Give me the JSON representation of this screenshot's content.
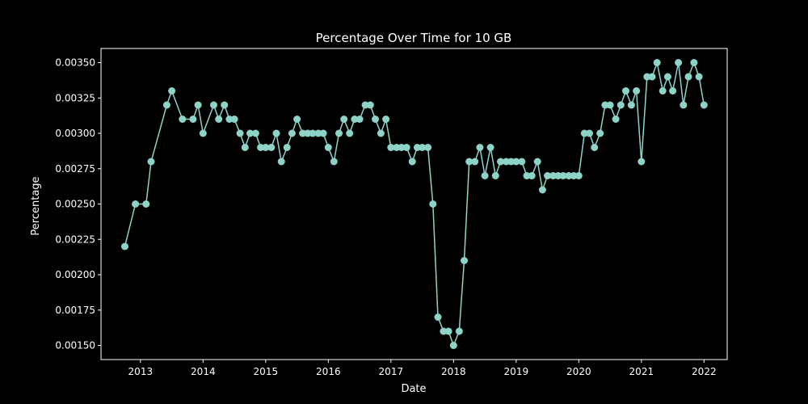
{
  "chart_data": {
    "type": "line",
    "title": "Percentage Over Time for 10 GB",
    "xlabel": "Date",
    "ylabel": "Percentage",
    "xlim": [
      2012.37,
      2022.37
    ],
    "ylim": [
      0.0014,
      0.0036
    ],
    "x_ticks": [
      2013,
      2014,
      2015,
      2016,
      2017,
      2018,
      2019,
      2020,
      2021,
      2022
    ],
    "x_tick_labels": [
      "2013",
      "2014",
      "2015",
      "2016",
      "2017",
      "2018",
      "2019",
      "2020",
      "2021",
      "2022"
    ],
    "y_ticks": [
      0.0015,
      0.00175,
      0.002,
      0.00225,
      0.0025,
      0.00275,
      0.003,
      0.00325,
      0.0035
    ],
    "y_tick_labels": [
      "0.00150",
      "0.00175",
      "0.00200",
      "0.00225",
      "0.00250",
      "0.00275",
      "0.00300",
      "0.00325",
      "0.00350"
    ],
    "grid": false,
    "colors": {
      "line": "#8dd3c7",
      "background": "#000000",
      "axes": "#ffffff"
    },
    "series": [
      {
        "name": "10 GB",
        "points": [
          [
            2012.75,
            0.0022
          ],
          [
            2012.92,
            0.0025
          ],
          [
            2013.09,
            0.0025
          ],
          [
            2013.17,
            0.0028
          ],
          [
            2013.42,
            0.0032
          ],
          [
            2013.5,
            0.0033
          ],
          [
            2013.67,
            0.0031
          ],
          [
            2013.84,
            0.0031
          ],
          [
            2013.92,
            0.0032
          ],
          [
            2014.0,
            0.003
          ],
          [
            2014.17,
            0.0032
          ],
          [
            2014.25,
            0.0031
          ],
          [
            2014.34,
            0.0032
          ],
          [
            2014.42,
            0.0031
          ],
          [
            2014.5,
            0.0031
          ],
          [
            2014.59,
            0.003
          ],
          [
            2014.67,
            0.0029
          ],
          [
            2014.75,
            0.003
          ],
          [
            2014.84,
            0.003
          ],
          [
            2014.92,
            0.0029
          ],
          [
            2015.0,
            0.0029
          ],
          [
            2015.09,
            0.0029
          ],
          [
            2015.17,
            0.003
          ],
          [
            2015.25,
            0.0028
          ],
          [
            2015.34,
            0.0029
          ],
          [
            2015.42,
            0.003
          ],
          [
            2015.5,
            0.0031
          ],
          [
            2015.59,
            0.003
          ],
          [
            2015.67,
            0.003
          ],
          [
            2015.75,
            0.003
          ],
          [
            2015.84,
            0.003
          ],
          [
            2015.92,
            0.003
          ],
          [
            2016.0,
            0.0029
          ],
          [
            2016.09,
            0.0028
          ],
          [
            2016.17,
            0.003
          ],
          [
            2016.25,
            0.0031
          ],
          [
            2016.34,
            0.003
          ],
          [
            2016.42,
            0.0031
          ],
          [
            2016.5,
            0.0031
          ],
          [
            2016.59,
            0.0032
          ],
          [
            2016.67,
            0.0032
          ],
          [
            2016.75,
            0.0031
          ],
          [
            2016.84,
            0.003
          ],
          [
            2016.92,
            0.0031
          ],
          [
            2017.0,
            0.0029
          ],
          [
            2017.09,
            0.0029
          ],
          [
            2017.17,
            0.0029
          ],
          [
            2017.25,
            0.0029
          ],
          [
            2017.34,
            0.0028
          ],
          [
            2017.42,
            0.0029
          ],
          [
            2017.5,
            0.0029
          ],
          [
            2017.59,
            0.0029
          ],
          [
            2017.67,
            0.0025
          ],
          [
            2017.75,
            0.0017
          ],
          [
            2017.84,
            0.0016
          ],
          [
            2017.92,
            0.0016
          ],
          [
            2018.0,
            0.0015
          ],
          [
            2018.09,
            0.0016
          ],
          [
            2018.17,
            0.0021
          ],
          [
            2018.25,
            0.0028
          ],
          [
            2018.34,
            0.0028
          ],
          [
            2018.42,
            0.0029
          ],
          [
            2018.5,
            0.0027
          ],
          [
            2018.59,
            0.0029
          ],
          [
            2018.67,
            0.0027
          ],
          [
            2018.75,
            0.0028
          ],
          [
            2018.84,
            0.0028
          ],
          [
            2018.92,
            0.0028
          ],
          [
            2019.0,
            0.0028
          ],
          [
            2019.09,
            0.0028
          ],
          [
            2019.17,
            0.0027
          ],
          [
            2019.25,
            0.0027
          ],
          [
            2019.34,
            0.0028
          ],
          [
            2019.42,
            0.0026
          ],
          [
            2019.5,
            0.0027
          ],
          [
            2019.59,
            0.0027
          ],
          [
            2019.67,
            0.0027
          ],
          [
            2019.75,
            0.0027
          ],
          [
            2019.84,
            0.0027
          ],
          [
            2019.92,
            0.0027
          ],
          [
            2020.0,
            0.0027
          ],
          [
            2020.09,
            0.003
          ],
          [
            2020.17,
            0.003
          ],
          [
            2020.25,
            0.0029
          ],
          [
            2020.34,
            0.003
          ],
          [
            2020.42,
            0.0032
          ],
          [
            2020.5,
            0.0032
          ],
          [
            2020.59,
            0.0031
          ],
          [
            2020.67,
            0.0032
          ],
          [
            2020.75,
            0.0033
          ],
          [
            2020.84,
            0.0032
          ],
          [
            2020.92,
            0.0033
          ],
          [
            2021.0,
            0.0028
          ],
          [
            2021.09,
            0.0034
          ],
          [
            2021.17,
            0.0034
          ],
          [
            2021.25,
            0.0035
          ],
          [
            2021.34,
            0.0033
          ],
          [
            2021.42,
            0.0034
          ],
          [
            2021.5,
            0.0033
          ],
          [
            2021.59,
            0.0035
          ],
          [
            2021.67,
            0.0032
          ],
          [
            2021.75,
            0.0034
          ],
          [
            2021.84,
            0.0035
          ],
          [
            2021.92,
            0.0034
          ],
          [
            2022.0,
            0.0032
          ]
        ]
      }
    ]
  }
}
